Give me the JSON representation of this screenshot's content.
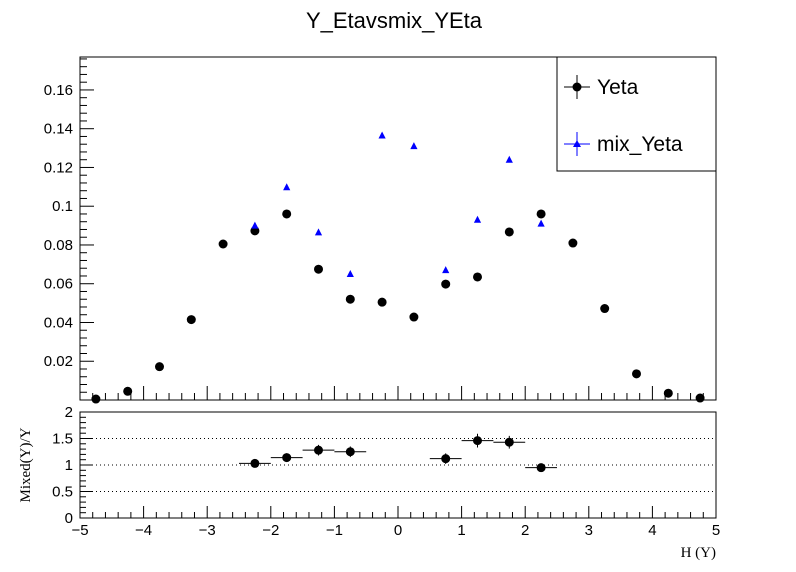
{
  "title": "Y_Etavsmix_YEta",
  "chart_data": [
    {
      "type": "scatter",
      "title": "Y_Etavsmix_YEta",
      "xlim": [
        -5,
        5
      ],
      "ylim": [
        0,
        0.177
      ],
      "y_ticks": [
        0.02,
        0.04,
        0.06,
        0.08,
        0.1,
        0.12,
        0.14,
        0.16
      ],
      "y_tick_labels": [
        "0.02",
        "0.04",
        "0.06",
        "0.08",
        "0.1",
        "0.12",
        "0.14",
        "0.16"
      ],
      "legend_position": "top-right",
      "series": [
        {
          "name": "Yeta",
          "marker": "circle",
          "color": "#000000",
          "x": [
            -4.75,
            -4.25,
            -3.75,
            -3.25,
            -2.75,
            -2.25,
            -1.75,
            -1.25,
            -0.75,
            -0.25,
            0.25,
            0.75,
            1.25,
            1.75,
            2.25,
            2.75,
            3.25,
            3.75,
            4.25,
            4.75
          ],
          "y": [
            0.0005,
            0.0045,
            0.0172,
            0.0415,
            0.0805,
            0.0873,
            0.096,
            0.0675,
            0.052,
            0.0505,
            0.0428,
            0.0598,
            0.0635,
            0.0867,
            0.096,
            0.081,
            0.0472,
            0.0135,
            0.0035,
            0.001
          ]
        },
        {
          "name": "mix_Yeta",
          "marker": "triangle",
          "color": "#0000ff",
          "x": [
            -2.25,
            -1.75,
            -1.25,
            -0.75,
            -0.25,
            0.25,
            0.75,
            1.25,
            1.75,
            2.25
          ],
          "y": [
            0.09,
            0.1098,
            0.0865,
            0.065,
            0.1365,
            0.131,
            0.067,
            0.093,
            0.124,
            0.091
          ]
        }
      ]
    },
    {
      "type": "scatter",
      "xlabel": "H (Y)",
      "ylabel": "Mixed(Y)/Y",
      "xlim": [
        -5,
        5
      ],
      "ylim": [
        0,
        2
      ],
      "x_ticks": [
        -5,
        -4,
        -3,
        -2,
        -1,
        0,
        1,
        2,
        3,
        4,
        5
      ],
      "x_tick_labels": [
        "−5",
        "−4",
        "−3",
        "−2",
        "−1",
        "0",
        "1",
        "2",
        "3",
        "4",
        "5"
      ],
      "y_ticks": [
        0,
        0.5,
        1,
        1.5,
        2
      ],
      "y_tick_labels": [
        "0",
        "0.5",
        "1",
        "1.5",
        "2"
      ],
      "grid": "dotted horizontal at 0.5, 1, 1.5",
      "series": [
        {
          "marker": "circle",
          "color": "#000000",
          "x": [
            -2.25,
            -1.75,
            -1.25,
            -0.75,
            0.75,
            1.25,
            1.75,
            2.25
          ],
          "y": [
            1.03,
            1.14,
            1.28,
            1.25,
            1.12,
            1.46,
            1.43,
            0.95
          ],
          "yerr": [
            0.06,
            0.08,
            0.1,
            0.1,
            0.1,
            0.13,
            0.12,
            0.06
          ],
          "xerr": 0.25
        }
      ]
    }
  ]
}
